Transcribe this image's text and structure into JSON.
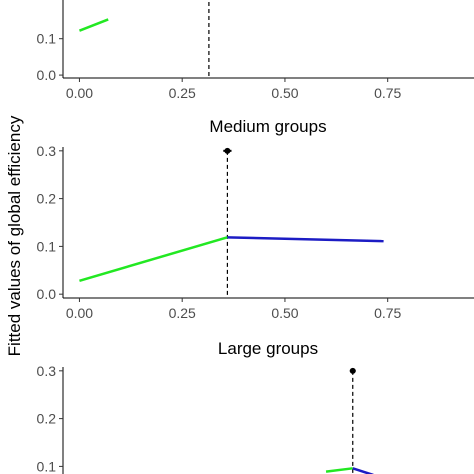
{
  "figure": {
    "ylabel": "Fitted values of global efficiency"
  },
  "chart_data": [
    {
      "type": "line",
      "title": "",
      "xlabel": "",
      "ylabel": "Fitted values of global efficiency",
      "xlim": [
        -0.04,
        0.96
      ],
      "ylim": [
        -0.008,
        0.308
      ],
      "x_ticks": [
        0.0,
        0.25,
        0.5,
        0.75
      ],
      "x_tick_labels": [
        "0.00",
        "0.25",
        "0.50",
        "0.75"
      ],
      "y_ticks": [
        0.0,
        0.1
      ],
      "y_tick_labels": [
        "0.0",
        "0.1"
      ],
      "grid": false,
      "series": [
        {
          "color": "#22e822",
          "x": [
            0.0,
            0.07
          ],
          "y": [
            0.122,
            0.153
          ]
        }
      ],
      "breakpoint": {
        "x": 0.315
      }
    },
    {
      "type": "line",
      "title": "Medium groups",
      "xlabel": "",
      "ylabel": "",
      "xlim": [
        -0.04,
        0.96
      ],
      "ylim": [
        -0.008,
        0.308
      ],
      "x_ticks": [
        0.0,
        0.25,
        0.5,
        0.75
      ],
      "x_tick_labels": [
        "0.00",
        "0.25",
        "0.50",
        "0.75"
      ],
      "y_ticks": [
        0.0,
        0.1,
        0.2,
        0.3
      ],
      "y_tick_labels": [
        "0.0",
        "0.1",
        "0.2",
        "0.3"
      ],
      "grid": false,
      "series": [
        {
          "color": "#22e822",
          "x": [
            0.0,
            0.36
          ],
          "y": [
            0.028,
            0.119
          ]
        },
        {
          "color": "#1c1cc4",
          "x": [
            0.36,
            0.74
          ],
          "y": [
            0.119,
            0.111
          ]
        }
      ],
      "breakpoint": {
        "x": 0.36,
        "estimate_y": 0.3,
        "ci": [
          0.35,
          0.37
        ]
      }
    },
    {
      "type": "line",
      "title": "Large groups",
      "xlabel": "",
      "ylabel": "",
      "xlim": [
        -0.04,
        0.96
      ],
      "ylim": [
        -0.008,
        0.308
      ],
      "x_ticks": [],
      "x_tick_labels": [],
      "y_ticks": [
        0.1,
        0.2,
        0.3
      ],
      "y_tick_labels": [
        "0.1",
        "0.2",
        "0.3"
      ],
      "grid": false,
      "series": [
        {
          "color": "#22e822",
          "x": [
            0.6,
            0.665
          ],
          "y": [
            0.089,
            0.096
          ]
        },
        {
          "color": "#1c1cc4",
          "x": [
            0.665,
            0.715
          ],
          "y": [
            0.096,
            0.082
          ]
        }
      ],
      "breakpoint": {
        "x": 0.665,
        "estimate_y": 0.3,
        "ci": [
          0.658,
          0.672
        ]
      }
    }
  ]
}
